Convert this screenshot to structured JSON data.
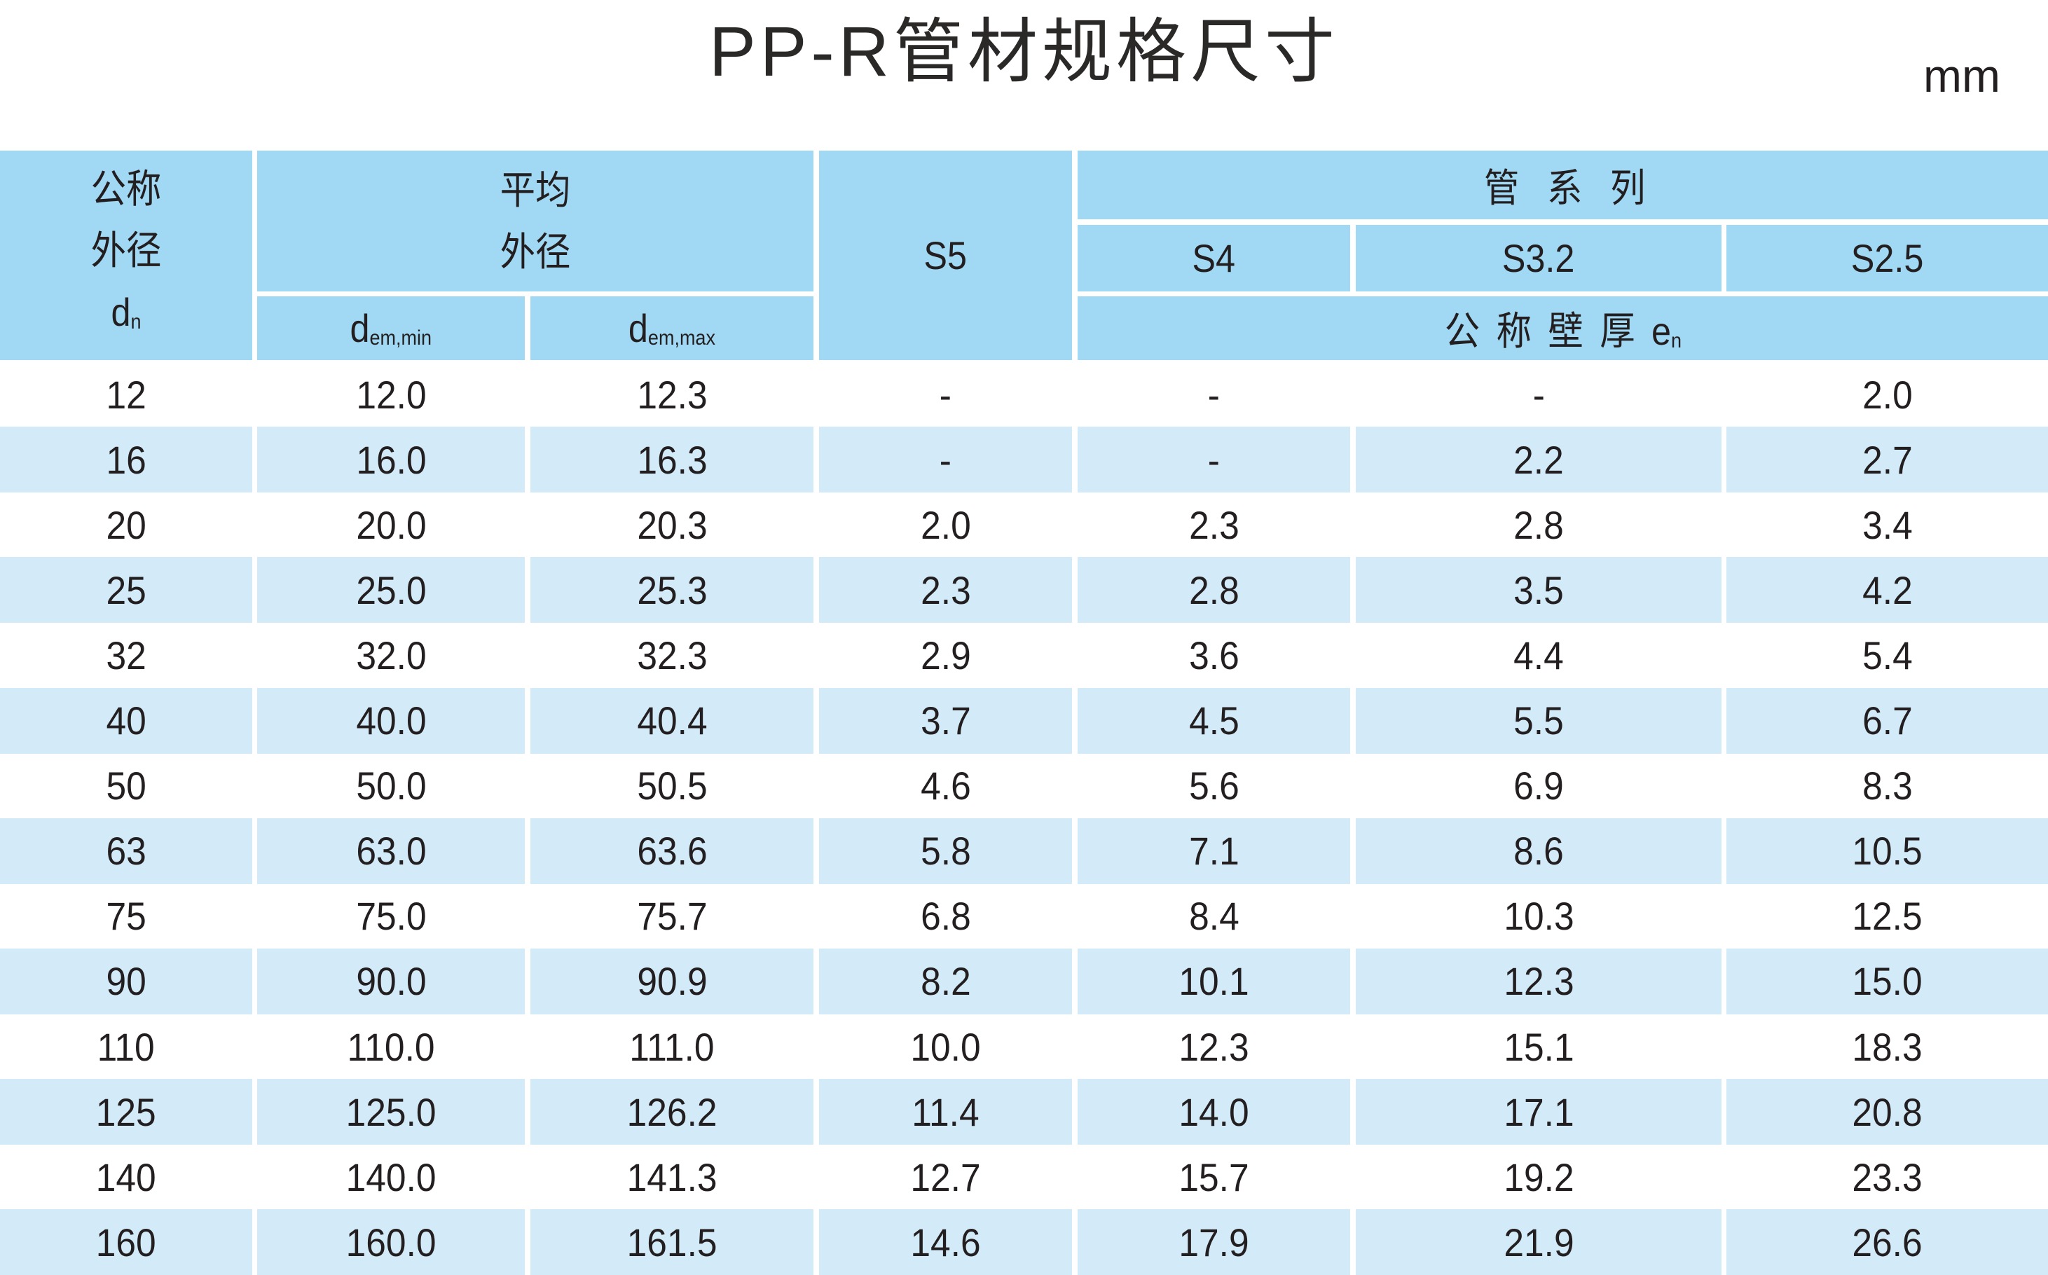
{
  "title": "PP-R管材规格尺寸",
  "unit": "mm",
  "header": {
    "nominal_od_line1": "公称",
    "nominal_od_line2": "外径",
    "nominal_od_symbol": "d",
    "nominal_od_sub": "n",
    "mean_od_line1": "平均",
    "mean_od_line2": "外径",
    "dem_min_symbol": "d",
    "dem_min_sub": "em,min",
    "dem_max_symbol": "d",
    "dem_max_sub": "em,max",
    "pipe_series": "管系列",
    "s5": "S5",
    "s4": "S4",
    "s3_2": "S3.2",
    "s2_5": "S2.5",
    "wall_thickness": "公称壁厚",
    "wall_symbol": "e",
    "wall_sub": "n"
  },
  "colors": {
    "header_bg": "#a1d9f5",
    "alt_row_bg": "#d3ebf9",
    "text": "#231f20"
  },
  "rows": [
    [
      "12",
      "12.0",
      "12.3",
      "-",
      "-",
      "-",
      "2.0"
    ],
    [
      "16",
      "16.0",
      "16.3",
      "-",
      "-",
      "2.2",
      "2.7"
    ],
    [
      "20",
      "20.0",
      "20.3",
      "2.0",
      "2.3",
      "2.8",
      "3.4"
    ],
    [
      "25",
      "25.0",
      "25.3",
      "2.3",
      "2.8",
      "3.5",
      "4.2"
    ],
    [
      "32",
      "32.0",
      "32.3",
      "2.9",
      "3.6",
      "4.4",
      "5.4"
    ],
    [
      "40",
      "40.0",
      "40.4",
      "3.7",
      "4.5",
      "5.5",
      "6.7"
    ],
    [
      "50",
      "50.0",
      "50.5",
      "4.6",
      "5.6",
      "6.9",
      "8.3"
    ],
    [
      "63",
      "63.0",
      "63.6",
      "5.8",
      "7.1",
      "8.6",
      "10.5"
    ],
    [
      "75",
      "75.0",
      "75.7",
      "6.8",
      "8.4",
      "10.3",
      "12.5"
    ],
    [
      "90",
      "90.0",
      "90.9",
      "8.2",
      "10.1",
      "12.3",
      "15.0"
    ],
    [
      "110",
      "110.0",
      "111.0",
      "10.0",
      "12.3",
      "15.1",
      "18.3"
    ],
    [
      "125",
      "125.0",
      "126.2",
      "11.4",
      "14.0",
      "17.1",
      "20.8"
    ],
    [
      "140",
      "140.0",
      "141.3",
      "12.7",
      "15.7",
      "19.2",
      "23.3"
    ],
    [
      "160",
      "160.0",
      "161.5",
      "14.6",
      "17.9",
      "21.9",
      "26.6"
    ]
  ]
}
